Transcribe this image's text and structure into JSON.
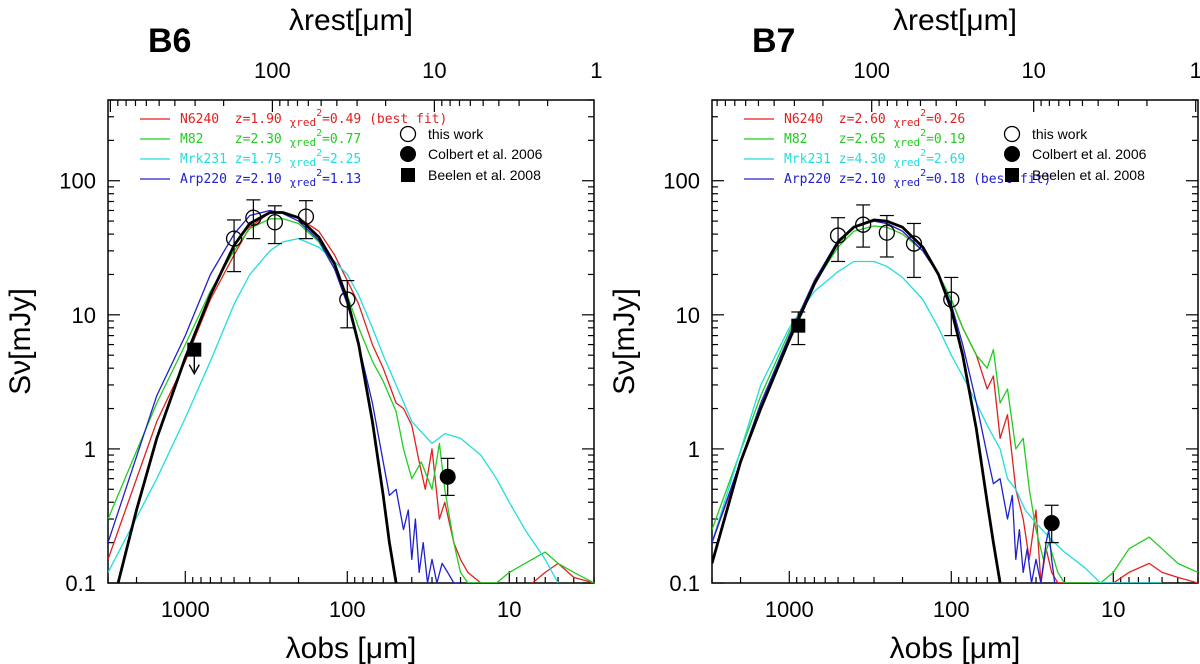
{
  "chart_data": [
    {
      "type": "line",
      "title": "B6",
      "xlabel": "λobs [μm]",
      "ylabel": "Sν[mJy]",
      "top_xlabel": "λrest[μm]",
      "xscale": "log",
      "yscale": "log",
      "xlim": [
        3000,
        3
      ],
      "ylim": [
        0.1,
        400
      ],
      "x_ticks": [
        1000,
        100,
        10
      ],
      "x_tick_labels": [
        "1000",
        "100",
        "10"
      ],
      "y_ticks": [
        0.1,
        1,
        10,
        100
      ],
      "y_tick_labels": [
        "0.1",
        "1",
        "10",
        "100"
      ],
      "top_ticks": [
        100,
        10,
        1
      ],
      "top_tick_labels": [
        "100",
        "10",
        "1"
      ],
      "redshift": 1.9,
      "series": [
        {
          "name": "N6240",
          "color": "#e02020",
          "legend": "N6240  z=1.90 χred2=0.49 (best fit)",
          "legend_name": "N6240",
          "legend_z": "z=1.90",
          "legend_chi_label": "χred",
          "legend_chi_sup": "2",
          "legend_chi_value": "=0.49",
          "legend_extra": "(best fit)",
          "x": [
            3000,
            1500,
            1000,
            700,
            500,
            400,
            300,
            250,
            200,
            150,
            120,
            100,
            85,
            70,
            60,
            55,
            50,
            45,
            40,
            36,
            33,
            30,
            27,
            25,
            22,
            20,
            18,
            15,
            12,
            10,
            8,
            6,
            5,
            4,
            3
          ],
          "y": [
            0.15,
            1.6,
            4.5,
            13,
            28,
            45,
            58,
            58,
            53,
            42,
            28,
            18,
            12,
            6,
            4,
            3,
            2.2,
            2,
            1.5,
            0.8,
            0.5,
            1.0,
            0.3,
            0.4,
            0.2,
            0.15,
            0.12,
            0.1,
            0.09,
            0.08,
            0.09,
            0.12,
            0.14,
            0.11,
            0.1
          ]
        },
        {
          "name": "M82",
          "color": "#22cc22",
          "legend": "M82    z=2.30 χred2=0.77",
          "legend_name": "M82",
          "legend_z": "z=2.30",
          "legend_chi_label": "χred",
          "legend_chi_sup": "2",
          "legend_chi_value": "=0.77",
          "legend_extra": "",
          "x": [
            3000,
            1500,
            1000,
            700,
            500,
            400,
            300,
            250,
            200,
            150,
            120,
            100,
            85,
            70,
            60,
            50,
            45,
            40,
            35,
            30,
            27,
            25,
            22,
            20,
            18,
            15,
            12,
            10,
            8,
            6,
            5,
            4,
            3
          ],
          "y": [
            0.3,
            2.2,
            6,
            15,
            30,
            44,
            52,
            52,
            48,
            35,
            22,
            14,
            8,
            4.5,
            3.2,
            1.9,
            1.0,
            0.6,
            0.8,
            0.5,
            1.1,
            0.5,
            0.2,
            0.12,
            0.1,
            0.1,
            0.1,
            0.12,
            0.14,
            0.17,
            0.14,
            0.12,
            0.1
          ]
        },
        {
          "name": "Mrk231",
          "color": "#22dddd",
          "legend": "Mrk231 z=1.75 χred2=2.25",
          "legend_name": "Mrk231",
          "legend_z": "z=1.75",
          "legend_chi_label": "χred",
          "legend_chi_sup": "2",
          "legend_chi_value": "=2.25",
          "legend_extra": "",
          "x": [
            3000,
            1500,
            1000,
            700,
            500,
            400,
            300,
            250,
            200,
            150,
            120,
            100,
            85,
            70,
            60,
            50,
            40,
            30,
            25,
            20,
            15,
            12,
            10,
            8,
            6,
            5
          ],
          "y": [
            0.12,
            0.6,
            1.7,
            4.5,
            12,
            20,
            30,
            35,
            37,
            32,
            25,
            20,
            14,
            8,
            5,
            3,
            1.6,
            1.1,
            1.3,
            1.2,
            0.9,
            0.6,
            0.4,
            0.25,
            0.15,
            0.1
          ]
        },
        {
          "name": "Arp220",
          "color": "#2020cc",
          "legend": "Arp220 z=2.10 χred2=1.13",
          "legend_name": "Arp220",
          "legend_z": "z=2.10",
          "legend_chi_label": "χred",
          "legend_chi_sup": "2",
          "legend_chi_value": "=1.13",
          "legend_extra": "",
          "x": [
            3000,
            1500,
            1000,
            700,
            500,
            400,
            300,
            250,
            200,
            150,
            120,
            100,
            85,
            70,
            60,
            55,
            50,
            45,
            42,
            40,
            38,
            36,
            34,
            32,
            30,
            28,
            26,
            24,
            22,
            20
          ],
          "y": [
            0.2,
            2.5,
            7,
            20,
            40,
            55,
            60,
            57,
            50,
            36,
            22,
            12,
            6,
            2.2,
            0.8,
            0.45,
            0.5,
            0.25,
            0.35,
            0.15,
            0.3,
            0.12,
            0.2,
            0.1,
            0.15,
            0.1,
            0.14,
            0.12,
            0.1,
            0.1
          ]
        },
        {
          "name": "best-fit",
          "color": "#000000",
          "legend": "",
          "legend_name": "",
          "legend_z": "",
          "legend_chi_label": "",
          "legend_chi_sup": "",
          "legend_chi_value": "",
          "legend_extra": "",
          "x": [
            2600,
            2000,
            1500,
            1000,
            700,
            500,
            400,
            300,
            250,
            200,
            150,
            120,
            100,
            85,
            70,
            60,
            55,
            50
          ],
          "y": [
            0.1,
            0.35,
            1.2,
            4.8,
            14,
            33,
            48,
            58,
            58,
            53,
            38,
            24,
            13,
            6,
            1.6,
            0.45,
            0.2,
            0.1
          ]
        }
      ],
      "points": {
        "this_work": {
          "label": "this work",
          "x": [
            500,
            380,
            280,
            180,
            100
          ],
          "y": [
            37,
            53,
            49,
            54,
            13
          ],
          "err_lo": [
            21,
            37,
            34,
            37,
            8
          ],
          "err_hi": [
            51,
            72,
            65,
            71,
            18
          ]
        },
        "colbert": {
          "label": "Colbert et al. 2006",
          "x": [
            24
          ],
          "y": [
            0.62
          ],
          "err_lo": [
            0.45
          ],
          "err_hi": [
            0.85
          ]
        },
        "beelen": {
          "label": "Beelen et al. 2008",
          "x": [
            880
          ],
          "y": [
            5.5
          ],
          "upper_limit": true
        }
      }
    },
    {
      "type": "line",
      "title": "B7",
      "xlabel": "λobs [μm]",
      "ylabel": "Sν[mJy]",
      "top_xlabel": "λrest[μm]",
      "xscale": "log",
      "yscale": "log",
      "xlim": [
        3000,
        3
      ],
      "ylim": [
        0.1,
        400
      ],
      "x_ticks": [
        1000,
        100,
        10
      ],
      "x_tick_labels": [
        "1000",
        "100",
        "10"
      ],
      "y_ticks": [
        0.1,
        1,
        10,
        100
      ],
      "y_tick_labels": [
        "0.1",
        "1",
        "10",
        "100"
      ],
      "top_ticks": [
        100,
        10,
        1
      ],
      "top_tick_labels": [
        "100",
        "10",
        "1"
      ],
      "redshift": 2.1,
      "series": [
        {
          "name": "N6240",
          "color": "#e02020",
          "legend": "N6240  z=2.60 χred2=0.26",
          "legend_name": "N6240",
          "legend_z": "z=2.60",
          "legend_chi_label": "χred",
          "legend_chi_sup": "2",
          "legend_chi_value": "=0.26",
          "legend_extra": "",
          "x": [
            3000,
            1500,
            1000,
            700,
            500,
            400,
            300,
            250,
            200,
            150,
            120,
            100,
            85,
            70,
            60,
            55,
            50,
            45,
            40,
            36,
            33,
            30,
            28,
            26,
            24,
            22,
            20,
            15,
            12,
            10,
            8,
            6,
            5,
            4,
            3
          ],
          "y": [
            0.2,
            2.0,
            7,
            18,
            35,
            45,
            50,
            48,
            42,
            30,
            20,
            13,
            8,
            5,
            2.8,
            3.5,
            1.2,
            1.8,
            0.5,
            0.3,
            0.15,
            0.35,
            0.1,
            0.18,
            0.12,
            0.1,
            0.1,
            0.1,
            0.09,
            0.1,
            0.12,
            0.14,
            0.12,
            0.11,
            0.1
          ]
        },
        {
          "name": "M82",
          "color": "#22cc22",
          "legend": "M82    z=2.65 χred2=0.19",
          "legend_name": "M82",
          "legend_z": "z=2.65",
          "legend_chi_label": "χred",
          "legend_chi_sup": "2",
          "legend_chi_value": "=0.19",
          "legend_extra": "",
          "x": [
            3000,
            1500,
            1000,
            700,
            500,
            400,
            300,
            250,
            200,
            150,
            120,
            100,
            85,
            70,
            60,
            55,
            50,
            45,
            40,
            36,
            33,
            30,
            27,
            25,
            22,
            20,
            15,
            12,
            10,
            8,
            6,
            5,
            4,
            3
          ],
          "y": [
            0.25,
            2.5,
            7.5,
            17,
            32,
            42,
            46,
            45,
            40,
            30,
            20,
            13,
            8,
            5,
            4,
            5.5,
            2.2,
            2.8,
            1.0,
            1.2,
            0.5,
            0.25,
            0.15,
            0.2,
            0.12,
            0.1,
            0.1,
            0.1,
            0.12,
            0.18,
            0.22,
            0.18,
            0.14,
            0.12
          ]
        },
        {
          "name": "Mrk231",
          "color": "#22dddd",
          "legend": "Mrk231 z=4.30 χred2=2.69",
          "legend_name": "Mrk231",
          "legend_z": "z=4.30",
          "legend_chi_label": "χred",
          "legend_chi_sup": "2",
          "legend_chi_value": "=2.69",
          "legend_extra": "",
          "x": [
            3000,
            1500,
            1000,
            700,
            500,
            400,
            300,
            250,
            200,
            150,
            120,
            100,
            85,
            70,
            60,
            50,
            45,
            40,
            35,
            30,
            25,
            20,
            15,
            12,
            10,
            8,
            6,
            5
          ],
          "y": [
            0.2,
            3,
            8,
            15,
            21,
            25,
            25,
            23,
            19,
            13,
            8,
            5,
            3.5,
            2.2,
            1.5,
            1.0,
            0.6,
            0.5,
            0.35,
            0.28,
            0.22,
            0.17,
            0.13,
            0.1,
            0.1,
            0.1,
            0.1,
            0.1
          ]
        },
        {
          "name": "Arp220",
          "color": "#2020cc",
          "legend": "Arp220 z=2.10 χred2=0.18 (best fit)",
          "legend_name": "Arp220",
          "legend_z": "z=2.10",
          "legend_chi_label": "χred",
          "legend_chi_sup": "2",
          "legend_chi_value": "=0.18",
          "legend_extra": "(best fit)",
          "x": [
            3000,
            1500,
            1000,
            700,
            500,
            400,
            300,
            250,
            200,
            150,
            120,
            100,
            85,
            70,
            60,
            55,
            50,
            45,
            42,
            40,
            38,
            36,
            34,
            32,
            30,
            28,
            26,
            25,
            24,
            23
          ],
          "y": [
            0.2,
            2.2,
            7,
            18,
            36,
            45,
            50,
            48,
            42,
            30,
            20,
            12,
            6,
            2.2,
            0.9,
            0.55,
            0.6,
            0.3,
            0.45,
            0.15,
            0.25,
            0.12,
            0.18,
            0.1,
            0.15,
            0.1,
            0.2,
            0.25,
            0.15,
            0.1
          ]
        },
        {
          "name": "best-fit",
          "color": "#000000",
          "legend": "",
          "legend_name": "",
          "legend_z": "",
          "legend_chi_label": "",
          "legend_chi_sup": "",
          "legend_chi_value": "",
          "legend_extra": "",
          "x": [
            3000,
            2000,
            1500,
            1000,
            700,
            500,
            400,
            300,
            250,
            200,
            150,
            120,
            100,
            85,
            70,
            60,
            55,
            50
          ],
          "y": [
            0.14,
            0.8,
            2.0,
            6.5,
            17,
            35,
            45,
            51,
            50,
            45,
            32,
            20,
            11,
            5,
            1.4,
            0.4,
            0.2,
            0.1
          ]
        }
      ],
      "points": {
        "this_work": {
          "label": "this work",
          "x": [
            500,
            350,
            250,
            170,
            100
          ],
          "y": [
            39,
            47,
            41,
            34,
            13
          ],
          "err_lo": [
            25,
            32,
            27,
            19,
            7
          ],
          "err_hi": [
            53,
            66,
            55,
            48,
            19
          ]
        },
        "colbert": {
          "label": "Colbert et al. 2006",
          "x": [
            24
          ],
          "y": [
            0.28
          ],
          "err_lo": [
            0.2
          ],
          "err_hi": [
            0.38
          ]
        },
        "beelen": {
          "label": "Beelen et al. 2008",
          "x": [
            880
          ],
          "y": [
            8.3
          ],
          "err_lo": [
            6
          ],
          "err_hi": [
            10.5
          ],
          "upper_limit": false
        }
      }
    }
  ]
}
